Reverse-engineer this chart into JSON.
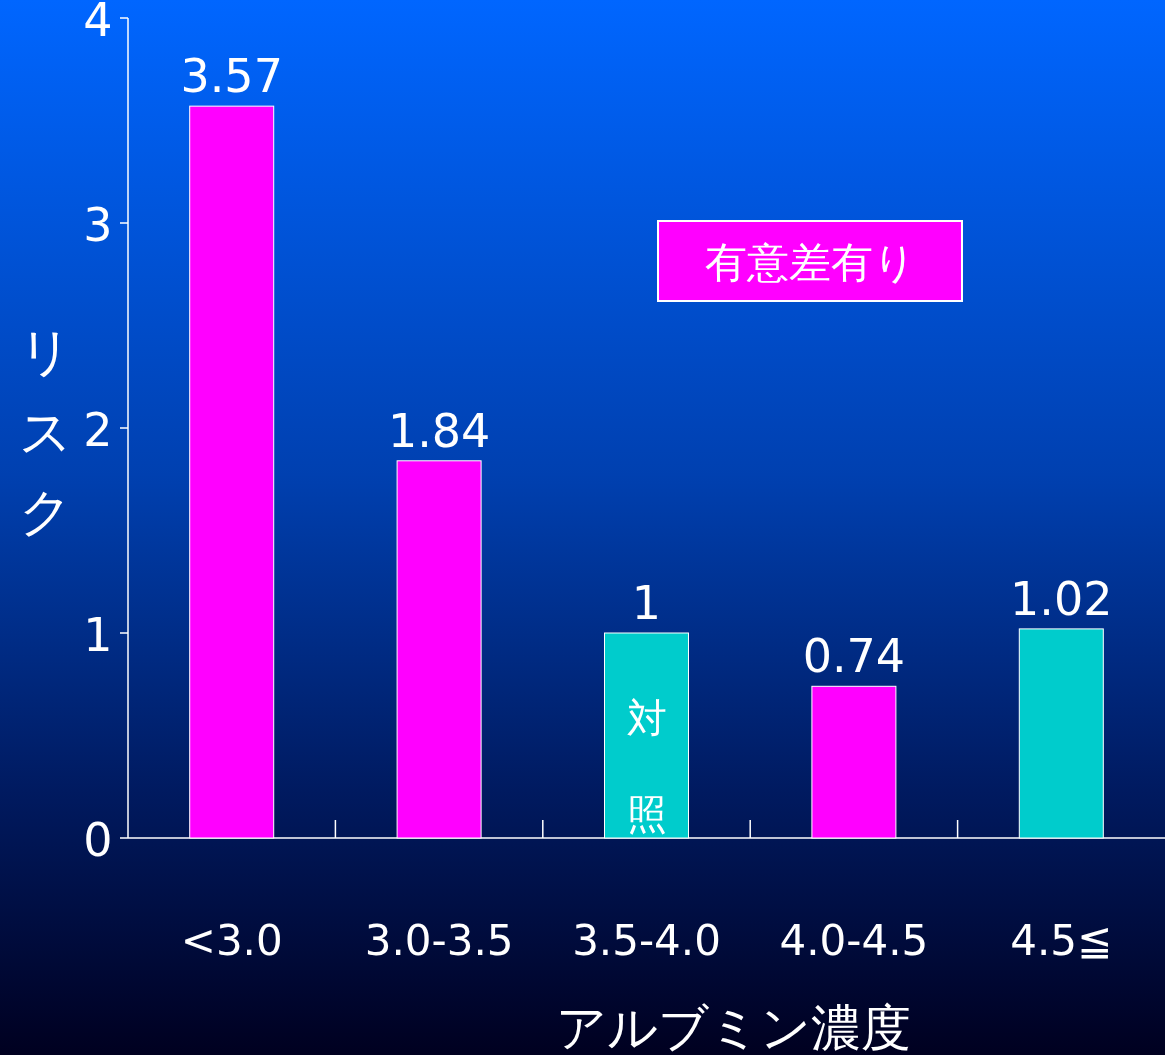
{
  "chart_data": {
    "type": "bar",
    "xlabel": "アルブミン濃度",
    "ylabel": "リスク",
    "categories": [
      "<3.0",
      "3.0-3.5",
      "3.5-4.0",
      "4.0-4.5",
      "4.5≦"
    ],
    "values": [
      3.57,
      1.84,
      1,
      0.74,
      1.02
    ],
    "colors": [
      "#ff00ff",
      "#ff00ff",
      "#00cccc",
      "#ff00ff",
      "#00cccc"
    ],
    "ylim": [
      0,
      4
    ],
    "yticks": [
      0,
      1,
      2,
      3,
      4
    ],
    "data_labels": true,
    "annotations": [
      "有意差有り",
      "対照"
    ]
  }
}
